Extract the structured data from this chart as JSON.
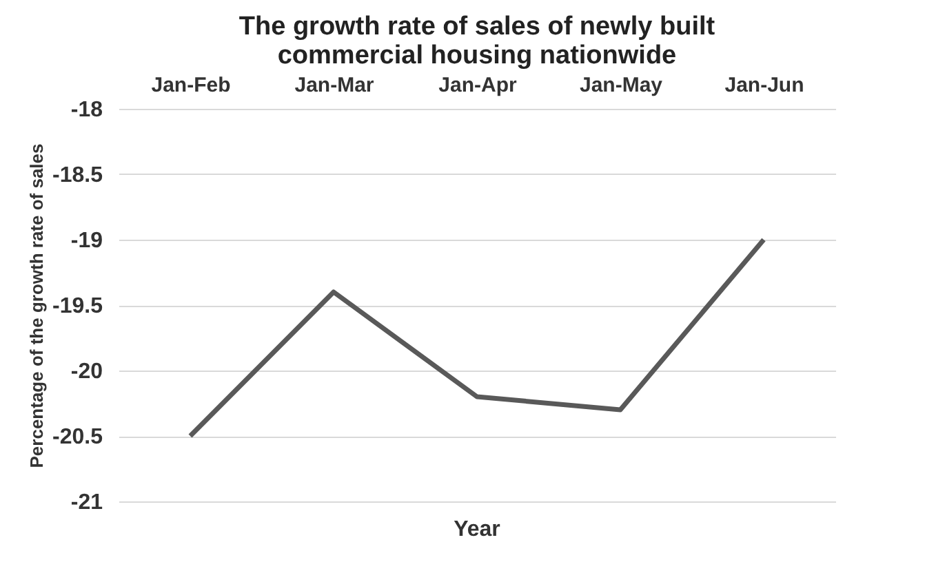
{
  "chart_data": {
    "type": "line",
    "title": [
      "The growth rate of sales of newly built",
      "commercial housing nationwide"
    ],
    "xlabel": "Year",
    "ylabel": "Percentage of the growth rate of sales",
    "categories": [
      "Jan-Feb",
      "Jan-Mar",
      "Jan-Apr",
      "Jan-May",
      "Jan-Jun"
    ],
    "series": [
      {
        "color": "#595959",
        "values": [
          -20.5,
          -19.4,
          -20.2,
          -20.3,
          -19.0
        ]
      }
    ],
    "ylim": [
      -21,
      -18
    ],
    "yticks": [
      -21,
      -20.5,
      -20,
      -19.5,
      -19,
      -18.5,
      -18
    ],
    "grid": "y",
    "marker": "none",
    "line_style": "solid"
  }
}
